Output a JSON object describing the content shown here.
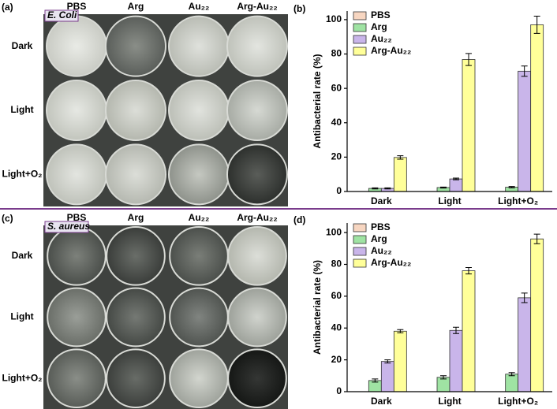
{
  "photo_panels": [
    {
      "label": "(a)",
      "strain": "E. Coli",
      "columns": [
        "PBS",
        "Arg",
        "Au₂₂",
        "Arg-Au₂₂"
      ],
      "rows": [
        "Dark",
        "Light",
        "Light+O₂"
      ]
    },
    {
      "label": "(c)",
      "strain": "S. aureus",
      "columns": [
        "PBS",
        "Arg",
        "Au₂₂",
        "Arg-Au₂₂"
      ],
      "rows": [
        "Dark",
        "Light",
        "Light+O₂"
      ]
    }
  ],
  "chart_data": [
    {
      "type": "bar",
      "panel_label": "(b)",
      "ylabel": "Antibacterial rate (%)",
      "categories": [
        "Dark",
        "Light",
        "Light+O₂"
      ],
      "series": [
        {
          "name": "PBS",
          "color": "#f7d6c1",
          "values": [
            0,
            0,
            0
          ],
          "errors": [
            0,
            0,
            0
          ]
        },
        {
          "name": "Arg",
          "color": "#9fe3a3",
          "values": [
            1.8,
            2.3,
            2.5
          ],
          "errors": [
            0.3,
            0.3,
            0.4
          ]
        },
        {
          "name": "Au₂₂",
          "color": "#c9b5ea",
          "values": [
            1.8,
            7.3,
            70
          ],
          "errors": [
            0.3,
            0.5,
            3
          ]
        },
        {
          "name": "Arg-Au₂₂",
          "color": "#ffff99",
          "values": [
            19.8,
            76.8,
            97
          ],
          "errors": [
            1,
            3.5,
            5
          ]
        }
      ],
      "ylim": [
        0,
        105
      ],
      "yticks": [
        0,
        20,
        40,
        60,
        80,
        100
      ],
      "legend": "upper left"
    },
    {
      "type": "bar",
      "panel_label": "(d)",
      "ylabel": "Antibacterial rate (%)",
      "categories": [
        "Dark",
        "Light",
        "Light+O₂"
      ],
      "series": [
        {
          "name": "PBS",
          "color": "#f7d6c1",
          "values": [
            0,
            0,
            0
          ],
          "errors": [
            0,
            0,
            0
          ]
        },
        {
          "name": "Arg",
          "color": "#9fe3a3",
          "values": [
            7,
            9,
            11
          ],
          "errors": [
            1,
            1,
            1
          ]
        },
        {
          "name": "Au₂₂",
          "color": "#c9b5ea",
          "values": [
            19,
            38.5,
            59
          ],
          "errors": [
            1,
            2,
            3
          ]
        },
        {
          "name": "Arg-Au₂₂",
          "color": "#ffff99",
          "values": [
            38,
            76,
            96
          ],
          "errors": [
            1,
            2,
            3
          ]
        }
      ],
      "ylim": [
        0,
        106
      ],
      "yticks": [
        0,
        20,
        40,
        60,
        80,
        100
      ],
      "legend": "upper left"
    }
  ]
}
